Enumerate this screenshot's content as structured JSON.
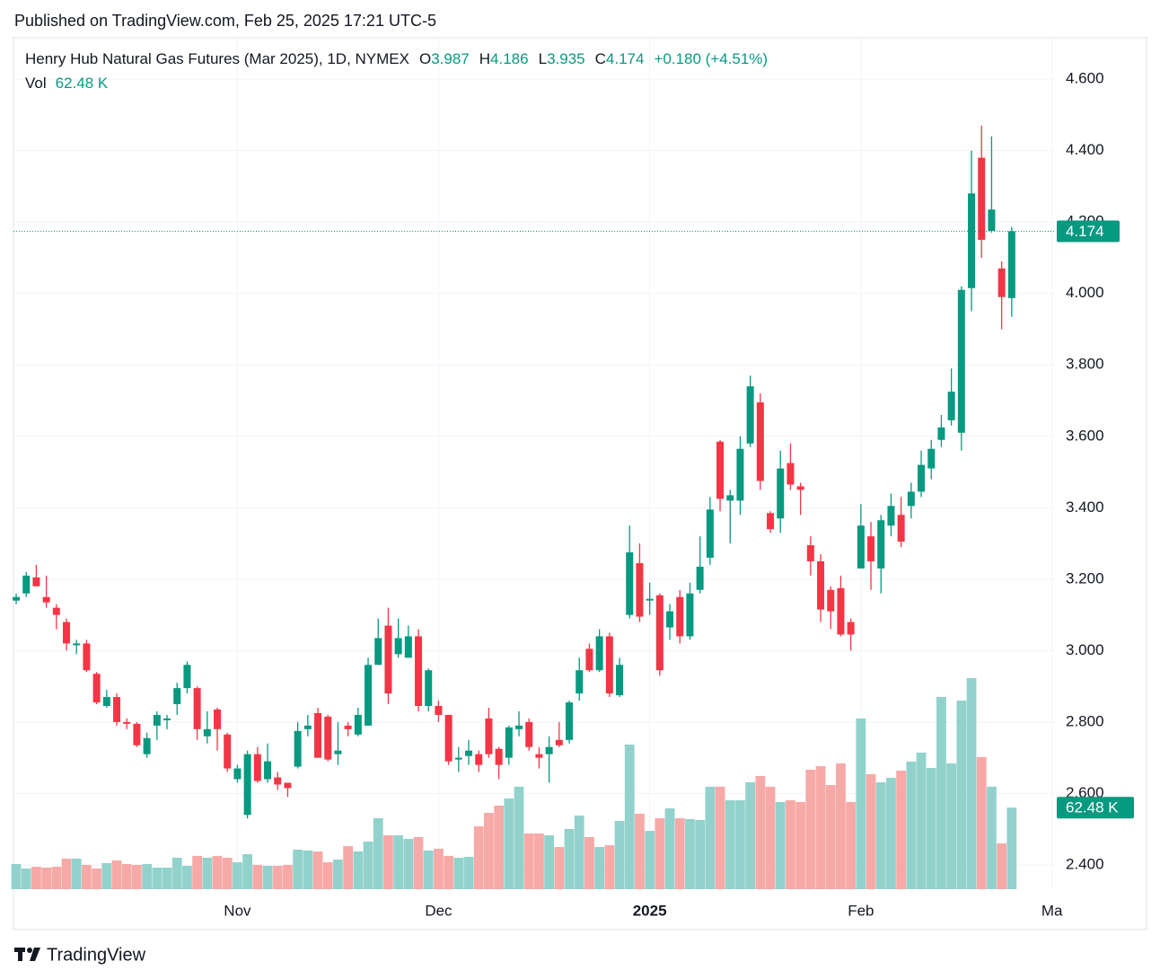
{
  "published": "Published on TradingView.com, Feb 25, 2025 17:21 UTC-5",
  "brand": "TradingView",
  "chart_data": {
    "type": "candlestick",
    "title": "Henry Hub Natural Gas Futures (Mar 2025), 1D, NYMEX",
    "ohlc_legend": [
      {
        "label": "O",
        "value": 3.987
      },
      {
        "label": "H",
        "value": 4.186
      },
      {
        "label": "L",
        "value": 3.935
      },
      {
        "label": "C",
        "value": 4.174
      }
    ],
    "change": "+0.180 (+4.51%)",
    "volume_legend_label": "Vol",
    "last_volume_label": "62.48 K",
    "last_price": 4.174,
    "up_color": "#089981",
    "down_color": "#f23645",
    "volume_up_color": "#92d2cc",
    "volume_down_color": "#f7a9a7",
    "open": [
      3.14,
      3.16,
      3.205,
      3.15,
      3.12,
      3.08,
      3.015,
      3.02,
      2.935,
      2.845,
      2.87,
      2.8,
      2.795,
      2.71,
      2.79,
      2.805,
      2.85,
      2.895,
      2.895,
      2.76,
      2.835,
      2.765,
      2.64,
      2.54,
      2.71,
      2.64,
      2.645,
      2.63,
      2.675,
      2.78,
      2.825,
      2.815,
      2.71,
      2.79,
      2.765,
      2.79,
      2.96,
      3.07,
      2.99,
      2.98,
      3.04,
      2.845,
      2.845,
      2.82,
      2.695,
      2.705,
      2.71,
      2.81,
      2.725,
      2.7,
      2.78,
      2.8,
      2.71,
      2.71,
      2.75,
      2.75,
      2.88,
      3.005,
      2.945,
      3.04,
      2.875,
      3.1,
      3.245,
      3.14,
      3.155,
      3.065,
      3.15,
      3.04,
      3.17,
      3.26,
      3.585,
      3.42,
      3.42,
      3.58,
      3.695,
      3.385,
      3.37,
      3.525,
      3.46,
      3.295,
      3.25,
      3.17,
      3.175,
      3.08,
      3.23,
      3.32,
      3.23,
      3.35,
      3.38,
      3.405,
      3.445,
      3.51,
      3.59,
      3.645,
      3.61,
      4.015,
      4.38,
      4.175,
      4.07,
      3.987
    ],
    "high": [
      3.16,
      3.22,
      3.24,
      3.21,
      3.13,
      3.09,
      3.03,
      3.03,
      2.94,
      2.89,
      2.88,
      2.81,
      2.8,
      2.77,
      2.83,
      2.82,
      2.91,
      2.97,
      2.9,
      2.83,
      2.84,
      2.77,
      2.68,
      2.72,
      2.73,
      2.74,
      2.66,
      2.63,
      2.8,
      2.82,
      2.84,
      2.82,
      2.8,
      2.8,
      2.84,
      2.98,
      3.09,
      3.12,
      3.09,
      3.07,
      3.06,
      2.95,
      2.86,
      2.82,
      2.73,
      2.75,
      2.72,
      2.84,
      2.73,
      2.79,
      2.83,
      2.81,
      2.73,
      2.76,
      2.8,
      2.86,
      2.98,
      3.02,
      3.06,
      3.05,
      2.98,
      3.35,
      3.3,
      3.19,
      3.16,
      3.13,
      3.17,
      3.19,
      3.32,
      3.43,
      3.59,
      3.45,
      3.6,
      3.77,
      3.72,
      3.39,
      3.56,
      3.58,
      3.47,
      3.32,
      3.27,
      3.18,
      3.21,
      3.09,
      3.41,
      3.36,
      3.38,
      3.44,
      3.43,
      3.47,
      3.56,
      3.59,
      3.66,
      3.79,
      4.02,
      4.4,
      4.47,
      4.44,
      4.09,
      4.186
    ],
    "low": [
      3.13,
      3.15,
      3.18,
      3.12,
      3.06,
      3.0,
      2.99,
      2.94,
      2.85,
      2.84,
      2.79,
      2.78,
      2.73,
      2.7,
      2.75,
      2.78,
      2.82,
      2.88,
      2.75,
      2.74,
      2.72,
      2.66,
      2.63,
      2.53,
      2.63,
      2.63,
      2.61,
      2.59,
      2.67,
      2.76,
      2.7,
      2.69,
      2.68,
      2.76,
      2.76,
      2.79,
      2.96,
      2.85,
      2.98,
      2.98,
      2.83,
      2.83,
      2.8,
      2.68,
      2.66,
      2.68,
      2.66,
      2.7,
      2.64,
      2.68,
      2.76,
      2.72,
      2.67,
      2.63,
      2.73,
      2.74,
      2.86,
      2.94,
      2.94,
      2.87,
      2.87,
      3.09,
      3.08,
      3.1,
      2.93,
      3.03,
      3.02,
      3.03,
      3.16,
      3.24,
      3.39,
      3.3,
      3.38,
      3.57,
      3.45,
      3.33,
      3.33,
      3.45,
      3.38,
      3.21,
      3.08,
      3.06,
      3.04,
      3.0,
      3.23,
      3.17,
      3.16,
      3.32,
      3.29,
      3.37,
      3.43,
      3.48,
      3.57,
      3.63,
      3.56,
      3.95,
      4.1,
      4.17,
      3.9,
      3.935
    ],
    "close": [
      3.15,
      3.21,
      3.18,
      3.135,
      3.1,
      3.02,
      3.02,
      2.945,
      2.855,
      2.87,
      2.8,
      2.795,
      2.735,
      2.755,
      2.82,
      2.81,
      2.895,
      2.96,
      2.78,
      2.78,
      2.78,
      2.67,
      2.67,
      2.71,
      2.635,
      2.69,
      2.625,
      2.615,
      2.775,
      2.79,
      2.7,
      2.695,
      2.72,
      2.78,
      2.82,
      2.96,
      3.035,
      2.88,
      3.035,
      3.04,
      2.845,
      2.945,
      2.82,
      2.69,
      2.7,
      2.72,
      2.68,
      2.71,
      2.68,
      2.785,
      2.79,
      2.73,
      2.7,
      2.73,
      2.735,
      2.855,
      2.945,
      2.945,
      3.04,
      2.88,
      2.96,
      3.275,
      3.095,
      3.145,
      2.945,
      3.11,
      3.04,
      3.16,
      3.235,
      3.395,
      3.425,
      3.435,
      3.565,
      3.74,
      3.475,
      3.34,
      3.51,
      3.465,
      3.45,
      3.25,
      3.115,
      3.11,
      3.045,
      3.045,
      3.35,
      3.25,
      3.365,
      3.405,
      3.305,
      3.445,
      3.52,
      3.565,
      3.625,
      3.725,
      4.01,
      4.28,
      4.15,
      4.235,
      3.99,
      4.174
    ],
    "volume": [
      19.3,
      15.8,
      17.2,
      16.5,
      17.2,
      23.4,
      23.4,
      18.6,
      15.8,
      20.0,
      22.0,
      19.3,
      18.6,
      19.3,
      16.5,
      16.5,
      24.1,
      17.9,
      25.5,
      24.1,
      25.5,
      24.1,
      20.6,
      26.8,
      18.6,
      17.9,
      17.9,
      18.6,
      30.3,
      29.6,
      28.9,
      20.6,
      22.7,
      33.0,
      28.9,
      36.5,
      54.4,
      41.3,
      41.3,
      38.5,
      39.9,
      29.6,
      31.0,
      25.5,
      24.1,
      24.8,
      48.2,
      58.5,
      64.0,
      69.5,
      78.5,
      42.7,
      42.7,
      41.3,
      32.3,
      46.1,
      56.4,
      39.9,
      32.3,
      33.7,
      52.3,
      110.8,
      57.8,
      44.7,
      54.4,
      61.9,
      54.4,
      53.7,
      53.0,
      78.5,
      78.5,
      68.1,
      68.1,
      81.9,
      86.7,
      78.5,
      66.8,
      68.1,
      66.8,
      91.5,
      94.3,
      79.8,
      96.4,
      66.8,
      130.8,
      88.1,
      81.9,
      85.3,
      90.8,
      97.7,
      104.6,
      92.9,
      147.3,
      96.4,
      144.5,
      161.7,
      101.2,
      78.5,
      35.1,
      62.48
    ],
    "volume_lim": [
      0,
      300
    ],
    "xlim": [
      -0.27,
      103.3
    ],
    "xticks": [
      {
        "value": 22,
        "label": "Nov"
      },
      {
        "value": 42,
        "label": "Dec"
      },
      {
        "value": 63,
        "label": "2025",
        "bold": true
      },
      {
        "value": 84,
        "label": "Feb"
      },
      {
        "value": 103,
        "label": "Ma"
      }
    ],
    "ylim": [
      2.332,
      4.716
    ],
    "yticks": [
      {
        "value": 2.4,
        "label": "2.400"
      },
      {
        "value": 2.6,
        "label": "2.600"
      },
      {
        "value": 2.8,
        "label": "2.800"
      },
      {
        "value": 3.0,
        "label": "3.000"
      },
      {
        "value": 3.2,
        "label": "3.200"
      },
      {
        "value": 3.4,
        "label": "3.400"
      },
      {
        "value": 3.6,
        "label": "3.600"
      },
      {
        "value": 3.8,
        "label": "3.800"
      },
      {
        "value": 4.0,
        "label": "4.000"
      },
      {
        "value": 4.2,
        "label": "4.200"
      },
      {
        "value": 4.4,
        "label": "4.400"
      },
      {
        "value": 4.6,
        "label": "4.600"
      }
    ],
    "grid": true
  }
}
